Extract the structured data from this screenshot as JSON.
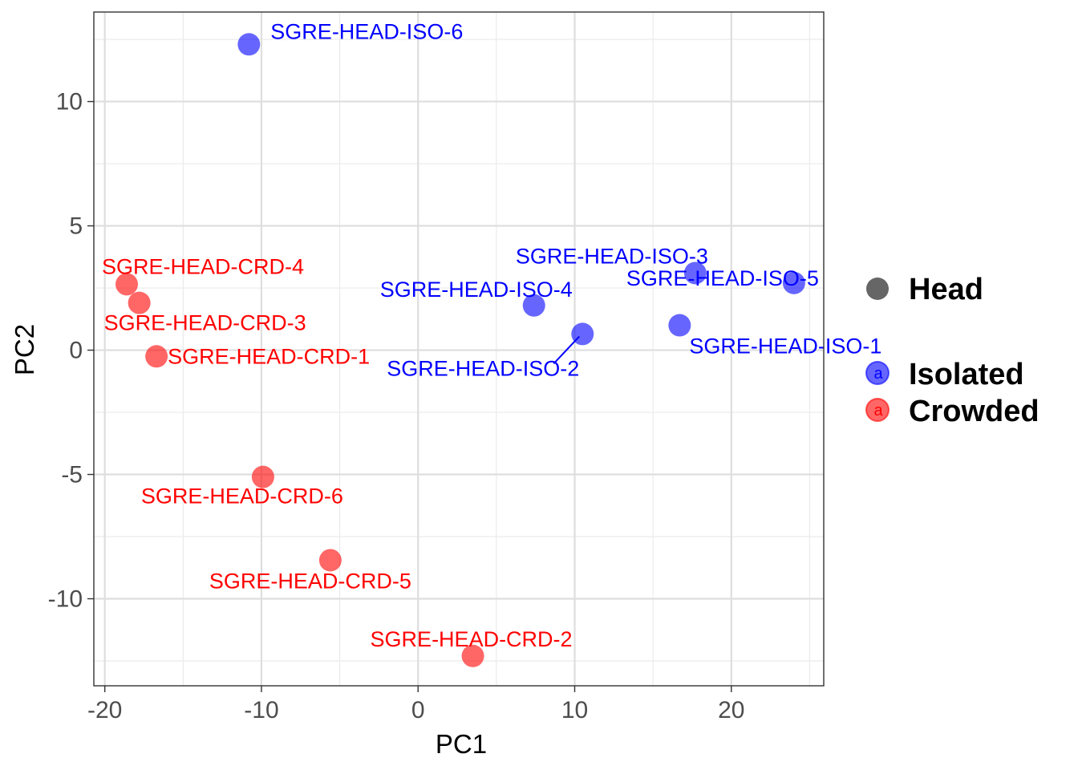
{
  "chart_data": {
    "type": "scatter",
    "title": "",
    "xlabel": "PC1",
    "ylabel": "PC2",
    "xlim": [
      -20.7,
      25.9
    ],
    "ylim": [
      -13.5,
      13.6
    ],
    "x_ticks": [
      -20,
      -10,
      0,
      10,
      20
    ],
    "y_ticks": [
      -10,
      -5,
      0,
      5,
      10
    ],
    "grid": true,
    "legend_position": "right",
    "legend_shape": {
      "label": "Head",
      "color": "#666666"
    },
    "series": [
      {
        "name": "Isolated",
        "color": "#0000ff",
        "points": [
          {
            "label": "SGRE-HEAD-ISO-1",
            "x": 16.7,
            "y": 1.0
          },
          {
            "label": "SGRE-HEAD-ISO-2",
            "x": 10.5,
            "y": 0.65
          },
          {
            "label": "SGRE-HEAD-ISO-3",
            "x": 17.7,
            "y": 3.1
          },
          {
            "label": "SGRE-HEAD-ISO-4",
            "x": 7.4,
            "y": 1.8
          },
          {
            "label": "SGRE-HEAD-ISO-5",
            "x": 24.0,
            "y": 2.7
          },
          {
            "label": "SGRE-HEAD-ISO-6",
            "x": -10.8,
            "y": 12.3
          }
        ]
      },
      {
        "name": "Crowded",
        "color": "#ff0000",
        "points": [
          {
            "label": "SGRE-HEAD-CRD-1",
            "x": -16.7,
            "y": -0.25
          },
          {
            "label": "SGRE-HEAD-CRD-2",
            "x": 3.5,
            "y": -12.3
          },
          {
            "label": "SGRE-HEAD-CRD-3",
            "x": -17.8,
            "y": 1.9
          },
          {
            "label": "SGRE-HEAD-CRD-4",
            "x": -18.6,
            "y": 2.65
          },
          {
            "label": "SGRE-HEAD-CRD-5",
            "x": -5.6,
            "y": -8.45
          },
          {
            "label": "SGRE-HEAD-CRD-6",
            "x": -9.9,
            "y": -5.1
          }
        ]
      }
    ]
  }
}
